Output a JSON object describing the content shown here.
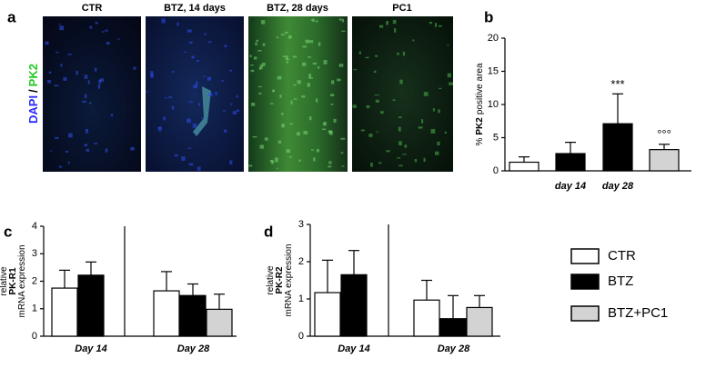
{
  "panel_labels": [
    "a",
    "b",
    "c",
    "d"
  ],
  "image_panel": {
    "ylabel_parts": [
      "DAPI",
      "/",
      "PK2"
    ],
    "titles": [
      "CTR",
      "BTZ, 14 days",
      "BTZ, 28 days",
      "PC1"
    ]
  },
  "chart_data": [
    {
      "type": "bar",
      "categories": [
        null,
        "day 14",
        "day 28",
        null
      ],
      "values": [
        1.3,
        2.6,
        7.1,
        3.2
      ],
      "errors": [
        0.8,
        1.7,
        4.5,
        0.8
      ],
      "colors": [
        "#ffffff",
        "#000000",
        "#000000",
        "#d3d3d3"
      ],
      "ylim": [
        0,
        20
      ],
      "yticks": [
        0,
        5,
        10,
        15,
        20
      ],
      "ylabel_parts": [
        "%",
        "PK2",
        "positive area"
      ],
      "annotations": [
        null,
        null,
        "***",
        "°°°"
      ]
    },
    {
      "type": "grouped_bar",
      "categories": [
        "Day 14",
        "Day 28"
      ],
      "ylim": [
        0,
        4
      ],
      "yticks": [
        0,
        1,
        2,
        3,
        4
      ],
      "ylabel_parts": [
        "relative",
        "PK-R1",
        "mRNA expression"
      ],
      "series": [
        {
          "name": "CTR",
          "color": "#ffffff",
          "values": [
            1.75,
            1.65
          ],
          "errors": [
            0.65,
            0.7
          ]
        },
        {
          "name": "BTZ",
          "color": "#000000",
          "values": [
            2.22,
            1.48
          ],
          "errors": [
            0.48,
            0.42
          ]
        },
        {
          "name": "BTZ+PC1",
          "color": "#d3d3d3",
          "values": [
            null,
            0.98
          ],
          "errors": [
            null,
            0.55
          ]
        }
      ]
    },
    {
      "type": "grouped_bar",
      "categories": [
        "Day 14",
        "Day 28"
      ],
      "ylim": [
        0,
        3
      ],
      "yticks": [
        0,
        1,
        2,
        3
      ],
      "ylabel_parts": [
        "relative",
        "PK-R2",
        "mRNA expression"
      ],
      "series": [
        {
          "name": "CTR",
          "color": "#ffffff",
          "values": [
            1.17,
            0.97
          ],
          "errors": [
            0.87,
            0.53
          ]
        },
        {
          "name": "BTZ",
          "color": "#000000",
          "values": [
            1.65,
            0.47
          ],
          "errors": [
            0.65,
            0.62
          ]
        },
        {
          "name": "BTZ+PC1",
          "color": "#d3d3d3",
          "values": [
            null,
            0.77
          ],
          "errors": [
            null,
            0.32
          ]
        }
      ]
    }
  ]
}
